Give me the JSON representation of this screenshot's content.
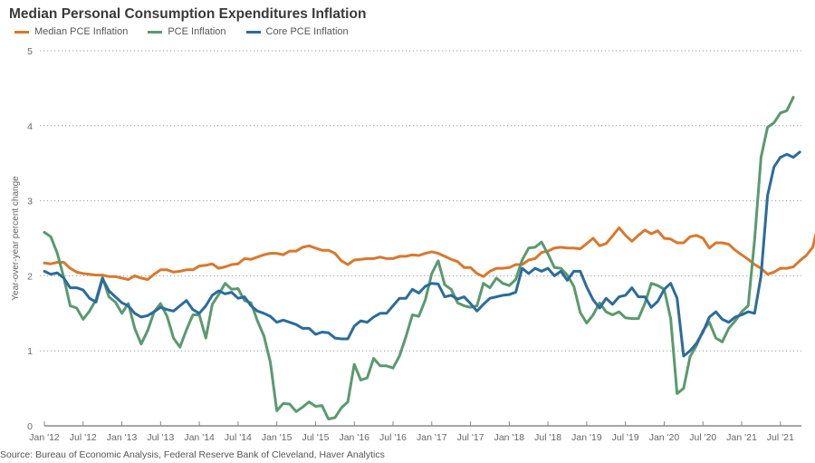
{
  "chart_data": {
    "type": "line",
    "title": "Median Personal Consumption Expenditures Inflation",
    "ylabel": "Year-over-year percent change",
    "xlabel": "",
    "ylim": [
      0,
      5
    ],
    "yticks": [
      0,
      1,
      2,
      3,
      4,
      5
    ],
    "grid": "horizontal dotted",
    "legend_position": "top-left",
    "x_start": "2012-01",
    "x_frequency": "monthly",
    "x_tick_labels": [
      "Jan '12",
      "Jul '12",
      "Jan '13",
      "Jul '13",
      "Jan '14",
      "Jul '14",
      "Jan '15",
      "Jul '15",
      "Jan '16",
      "Jul '16",
      "Jan '17",
      "Jul '17",
      "Jan '18",
      "Jul '18",
      "Jan '19",
      "Jul '19",
      "Jan '20",
      "Jul '20",
      "Jan '21",
      "Jul '21"
    ],
    "series": [
      {
        "name": "Median PCE Inflation",
        "color": "#d9782d",
        "values": [
          2.17,
          2.16,
          2.18,
          2.18,
          2.1,
          2.05,
          2.03,
          2.02,
          2.01,
          2.01,
          1.99,
          1.99,
          1.97,
          1.95,
          2.0,
          1.97,
          1.95,
          2.02,
          2.08,
          2.08,
          2.05,
          2.06,
          2.08,
          2.08,
          2.13,
          2.14,
          2.16,
          2.1,
          2.12,
          2.15,
          2.16,
          2.23,
          2.22,
          2.25,
          2.28,
          2.3,
          2.3,
          2.28,
          2.33,
          2.33,
          2.38,
          2.4,
          2.37,
          2.34,
          2.34,
          2.3,
          2.2,
          2.15,
          2.21,
          2.22,
          2.23,
          2.23,
          2.25,
          2.23,
          2.23,
          2.26,
          2.26,
          2.28,
          2.27,
          2.3,
          2.32,
          2.3,
          2.26,
          2.22,
          2.19,
          2.11,
          2.11,
          2.03,
          1.99,
          2.06,
          2.1,
          2.1,
          2.11,
          2.15,
          2.15,
          2.21,
          2.23,
          2.31,
          2.33,
          2.37,
          2.38,
          2.37,
          2.37,
          2.36,
          2.43,
          2.5,
          2.4,
          2.43,
          2.53,
          2.64,
          2.54,
          2.46,
          2.54,
          2.61,
          2.56,
          2.6,
          2.5,
          2.49,
          2.44,
          2.44,
          2.52,
          2.54,
          2.5,
          2.37,
          2.44,
          2.44,
          2.42,
          2.34,
          2.28,
          2.22,
          2.15,
          2.1,
          2.02,
          2.05,
          2.1,
          2.1,
          2.12,
          2.2,
          2.27,
          2.38,
          2.73
        ]
      },
      {
        "name": "PCE Inflation",
        "color": "#5a9a6e",
        "values": [
          2.58,
          2.52,
          2.3,
          1.98,
          1.6,
          1.57,
          1.42,
          1.53,
          1.68,
          1.98,
          1.72,
          1.65,
          1.5,
          1.63,
          1.3,
          1.09,
          1.27,
          1.52,
          1.63,
          1.46,
          1.17,
          1.05,
          1.28,
          1.48,
          1.48,
          1.17,
          1.62,
          1.75,
          1.9,
          1.82,
          1.83,
          1.67,
          1.64,
          1.4,
          1.2,
          0.85,
          0.2,
          0.3,
          0.29,
          0.19,
          0.25,
          0.32,
          0.26,
          0.27,
          0.09,
          0.11,
          0.24,
          0.32,
          0.82,
          0.61,
          0.64,
          0.9,
          0.8,
          0.8,
          0.77,
          0.93,
          1.19,
          1.48,
          1.46,
          1.68,
          2.03,
          2.2,
          1.88,
          1.82,
          1.64,
          1.6,
          1.58,
          1.6,
          1.9,
          1.84,
          1.97,
          1.9,
          1.87,
          1.95,
          2.21,
          2.37,
          2.38,
          2.45,
          2.29,
          2.11,
          2.1,
          2.01,
          1.86,
          1.51,
          1.37,
          1.48,
          1.64,
          1.52,
          1.48,
          1.52,
          1.44,
          1.43,
          1.43,
          1.63,
          1.9,
          1.87,
          1.82,
          1.43,
          0.43,
          0.5,
          0.92,
          1.07,
          1.27,
          1.38,
          1.17,
          1.12,
          1.3,
          1.4,
          1.52,
          1.6,
          2.48,
          3.58,
          3.98,
          4.04,
          4.17,
          4.2,
          4.38
        ]
      },
      {
        "name": "Core PCE Inflation",
        "color": "#2b6c9c",
        "values": [
          2.06,
          2.02,
          2.04,
          1.97,
          1.84,
          1.84,
          1.81,
          1.7,
          1.65,
          1.96,
          1.8,
          1.72,
          1.64,
          1.6,
          1.5,
          1.45,
          1.47,
          1.52,
          1.58,
          1.55,
          1.53,
          1.6,
          1.67,
          1.55,
          1.5,
          1.6,
          1.74,
          1.8,
          1.76,
          1.78,
          1.7,
          1.72,
          1.6,
          1.53,
          1.5,
          1.46,
          1.38,
          1.41,
          1.38,
          1.35,
          1.3,
          1.3,
          1.22,
          1.25,
          1.24,
          1.17,
          1.16,
          1.16,
          1.33,
          1.4,
          1.38,
          1.45,
          1.5,
          1.5,
          1.6,
          1.7,
          1.7,
          1.82,
          1.77,
          1.86,
          1.9,
          1.89,
          1.72,
          1.74,
          1.69,
          1.72,
          1.63,
          1.53,
          1.62,
          1.7,
          1.72,
          1.74,
          1.75,
          1.78,
          2.1,
          2.03,
          2.1,
          2.06,
          2.1,
          2.0,
          2.06,
          1.94,
          2.06,
          2.06,
          1.85,
          1.68,
          1.57,
          1.7,
          1.62,
          1.72,
          1.74,
          1.84,
          1.72,
          1.72,
          1.58,
          1.66,
          1.82,
          1.9,
          1.7,
          0.93,
          1.0,
          1.1,
          1.25,
          1.45,
          1.52,
          1.42,
          1.38,
          1.45,
          1.48,
          1.52,
          1.5,
          2.0,
          3.07,
          3.45,
          3.58,
          3.62,
          3.58,
          3.65
        ]
      }
    ]
  },
  "legend": [
    {
      "label": "Median PCE Inflation",
      "color": "#d9782d"
    },
    {
      "label": "PCE Inflation",
      "color": "#5a9a6e"
    },
    {
      "label": "Core PCE Inflation",
      "color": "#2b6c9c"
    }
  ],
  "source": "Source: Bureau of Economic Analysis, Federal Reserve Bank of Cleveland, Haver Analytics"
}
